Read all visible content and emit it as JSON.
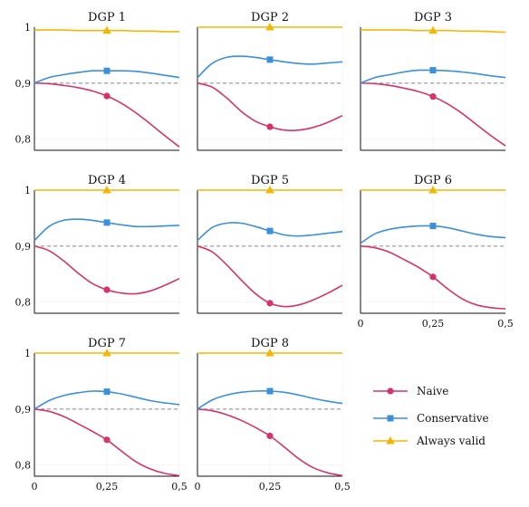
{
  "chart_data": {
    "type": "line",
    "ylim": [
      0.78,
      1.0
    ],
    "xlim": [
      0,
      0.5
    ],
    "x_ticks": [
      "0",
      "0,25",
      "0,5"
    ],
    "y_ticks": [
      "0,8",
      "0,9",
      "1"
    ],
    "y_tick_values": [
      0.8,
      0.9,
      1.0
    ],
    "x_tick_values": [
      0,
      0.25,
      0.5
    ],
    "reference_line": 0.9,
    "grid": true,
    "legend_position": "bottom-right",
    "colors": {
      "Naive": "#d6336c",
      "Conservative": "#3b8fdb",
      "Always valid": "#f2b705"
    },
    "x": [
      0,
      0.05,
      0.1,
      0.15,
      0.2,
      0.25,
      0.3,
      0.35,
      0.4,
      0.45,
      0.5
    ],
    "legend": [
      {
        "name": "Naive",
        "marker": "circle"
      },
      {
        "name": "Conservative",
        "marker": "square"
      },
      {
        "name": "Always valid",
        "marker": "triangle"
      }
    ],
    "panels": [
      {
        "title": "DGP 1",
        "series": [
          {
            "name": "Naive",
            "values": [
              0.9,
              0.899,
              0.896,
              0.892,
              0.886,
              0.877,
              0.864,
              0.847,
              0.827,
              0.806,
              0.786
            ]
          },
          {
            "name": "Conservative",
            "values": [
              0.9,
              0.91,
              0.915,
              0.919,
              0.922,
              0.922,
              0.922,
              0.921,
              0.918,
              0.914,
              0.91
            ]
          },
          {
            "name": "Always valid",
            "values": [
              0.995,
              0.995,
              0.995,
              0.994,
              0.994,
              0.994,
              0.994,
              0.993,
              0.993,
              0.992,
              0.992
            ]
          }
        ]
      },
      {
        "title": "DGP 2",
        "series": [
          {
            "name": "Naive",
            "values": [
              0.9,
              0.893,
              0.874,
              0.85,
              0.832,
              0.822,
              0.816,
              0.816,
              0.821,
              0.83,
              0.842
            ]
          },
          {
            "name": "Conservative",
            "values": [
              0.91,
              0.935,
              0.946,
              0.948,
              0.946,
              0.942,
              0.938,
              0.935,
              0.934,
              0.936,
              0.938
            ]
          },
          {
            "name": "Always valid",
            "values": [
              1.0,
              1.0,
              1.0,
              1.0,
              1.0,
              1.0,
              1.0,
              1.0,
              1.0,
              1.0,
              1.0
            ]
          }
        ]
      },
      {
        "title": "DGP 3",
        "series": [
          {
            "name": "Naive",
            "values": [
              0.9,
              0.899,
              0.896,
              0.891,
              0.885,
              0.876,
              0.863,
              0.846,
              0.826,
              0.806,
              0.788
            ]
          },
          {
            "name": "Conservative",
            "values": [
              0.9,
              0.91,
              0.915,
              0.92,
              0.923,
              0.923,
              0.922,
              0.92,
              0.917,
              0.913,
              0.91
            ]
          },
          {
            "name": "Always valid",
            "values": [
              0.995,
              0.995,
              0.995,
              0.995,
              0.994,
              0.994,
              0.994,
              0.993,
              0.993,
              0.992,
              0.991
            ]
          }
        ]
      },
      {
        "title": "DGP 4",
        "series": [
          {
            "name": "Naive",
            "values": [
              0.9,
              0.892,
              0.874,
              0.852,
              0.833,
              0.822,
              0.816,
              0.815,
              0.82,
              0.83,
              0.842
            ]
          },
          {
            "name": "Conservative",
            "values": [
              0.91,
              0.935,
              0.946,
              0.948,
              0.946,
              0.942,
              0.938,
              0.935,
              0.935,
              0.936,
              0.937
            ]
          },
          {
            "name": "Always valid",
            "values": [
              1.0,
              1.0,
              1.0,
              1.0,
              1.0,
              1.0,
              1.0,
              1.0,
              1.0,
              1.0,
              1.0
            ]
          }
        ]
      },
      {
        "title": "DGP 5",
        "series": [
          {
            "name": "Naive",
            "values": [
              0.9,
              0.89,
              0.867,
              0.84,
              0.815,
              0.798,
              0.792,
              0.795,
              0.804,
              0.816,
              0.83
            ]
          },
          {
            "name": "Conservative",
            "values": [
              0.91,
              0.933,
              0.941,
              0.941,
              0.935,
              0.927,
              0.92,
              0.918,
              0.92,
              0.923,
              0.926
            ]
          },
          {
            "name": "Always valid",
            "values": [
              1.0,
              1.0,
              1.0,
              1.0,
              1.0,
              1.0,
              1.0,
              1.0,
              1.0,
              1.0,
              1.0
            ]
          }
        ]
      },
      {
        "title": "DGP 6",
        "series": [
          {
            "name": "Naive",
            "values": [
              0.9,
              0.897,
              0.889,
              0.876,
              0.862,
              0.845,
              0.824,
              0.806,
              0.795,
              0.79,
              0.788
            ]
          },
          {
            "name": "Conservative",
            "values": [
              0.905,
              0.922,
              0.93,
              0.934,
              0.936,
              0.936,
              0.933,
              0.927,
              0.921,
              0.917,
              0.915
            ]
          },
          {
            "name": "Always valid",
            "values": [
              1.0,
              1.0,
              1.0,
              1.0,
              1.0,
              1.0,
              1.0,
              1.0,
              1.0,
              1.0,
              1.0
            ]
          }
        ]
      },
      {
        "title": "DGP 7",
        "series": [
          {
            "name": "Naive",
            "values": [
              0.9,
              0.896,
              0.887,
              0.874,
              0.86,
              0.845,
              0.825,
              0.806,
              0.793,
              0.785,
              0.781
            ]
          },
          {
            "name": "Conservative",
            "values": [
              0.9,
              0.915,
              0.924,
              0.929,
              0.932,
              0.931,
              0.927,
              0.921,
              0.915,
              0.911,
              0.908
            ]
          },
          {
            "name": "Always valid",
            "values": [
              1.0,
              1.0,
              1.0,
              1.0,
              1.0,
              1.0,
              1.0,
              1.0,
              1.0,
              1.0,
              1.0
            ]
          }
        ]
      },
      {
        "title": "DGP 8",
        "series": [
          {
            "name": "Naive",
            "values": [
              0.9,
              0.897,
              0.89,
              0.88,
              0.867,
              0.852,
              0.832,
              0.811,
              0.795,
              0.786,
              0.781
            ]
          },
          {
            "name": "Conservative",
            "values": [
              0.9,
              0.916,
              0.925,
              0.93,
              0.932,
              0.932,
              0.93,
              0.925,
              0.919,
              0.914,
              0.91
            ]
          },
          {
            "name": "Always valid",
            "values": [
              1.0,
              1.0,
              1.0,
              1.0,
              1.0,
              1.0,
              1.0,
              1.0,
              1.0,
              1.0,
              1.0
            ]
          }
        ]
      }
    ]
  }
}
